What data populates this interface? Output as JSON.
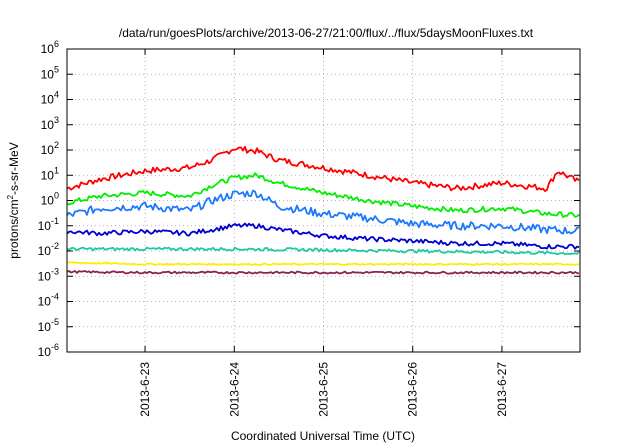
{
  "chart_data": {
    "type": "line",
    "title": "/data/run/goesPlots/archive/2013-06-27/21:00/flux/../flux/5daysMoonFluxes.txt",
    "xlabel": "Coordinated Universal Time (UTC)",
    "ylabel": "protons/cm²-s-sr-MeV",
    "ylabel_parts": {
      "prefix": "protons/cm",
      "sup": "2",
      "suffix": "-s-sr-MeV"
    },
    "y_scale": "log",
    "ylim": [
      1e-06,
      1000000.0
    ],
    "y_ticks": [
      {
        "value": 1e-06,
        "exp": "-6"
      },
      {
        "value": 1e-05,
        "exp": "-5"
      },
      {
        "value": 0.0001,
        "exp": "-4"
      },
      {
        "value": 0.001,
        "exp": "-3"
      },
      {
        "value": 0.01,
        "exp": "-2"
      },
      {
        "value": 0.1,
        "exp": "-1"
      },
      {
        "value": 1,
        "exp": "0"
      },
      {
        "value": 10,
        "exp": "1"
      },
      {
        "value": 100,
        "exp": "2"
      },
      {
        "value": 1000,
        "exp": "3"
      },
      {
        "value": 10000.0,
        "exp": "4"
      },
      {
        "value": 100000.0,
        "exp": "5"
      },
      {
        "value": 1000000.0,
        "exp": "6"
      }
    ],
    "x_ticks": [
      "2013-6-23",
      "2013-6-24",
      "2013-6-25",
      "2013-6-26",
      "2013-6-27"
    ],
    "xlim": [
      "2013-06-22 03:00",
      "2013-06-27 21:00"
    ],
    "grid": true,
    "legend": "none",
    "series": [
      {
        "color": "#ff0000",
        "x": [
          "2013-06-22 03:00",
          "2013-06-22 12:00",
          "2013-06-23 00:00",
          "2013-06-23 12:00",
          "2013-06-23 18:00",
          "2013-06-24 00:00",
          "2013-06-24 06:00",
          "2013-06-24 12:00",
          "2013-06-25 00:00",
          "2013-06-25 12:00",
          "2013-06-26 00:00",
          "2013-06-26 12:00",
          "2013-06-27 00:00",
          "2013-06-27 12:00",
          "2013-06-27 15:00",
          "2013-06-27 21:00"
        ],
        "values": [
          3,
          7,
          15,
          20,
          40,
          120,
          90,
          40,
          20,
          10,
          5,
          3,
          5,
          3,
          15,
          5
        ]
      },
      {
        "color": "#00ee00",
        "x": [
          "2013-06-22 03:00",
          "2013-06-22 12:00",
          "2013-06-23 00:00",
          "2013-06-23 12:00",
          "2013-06-23 18:00",
          "2013-06-24 00:00",
          "2013-06-24 06:00",
          "2013-06-24 12:00",
          "2013-06-25 00:00",
          "2013-06-25 12:00",
          "2013-06-26 00:00",
          "2013-06-26 12:00",
          "2013-06-27 00:00",
          "2013-06-27 12:00",
          "2013-06-27 21:00"
        ],
        "values": [
          0.8,
          1.5,
          2,
          1.5,
          4,
          8,
          10,
          5,
          2,
          1,
          0.6,
          0.4,
          0.5,
          0.3,
          0.25
        ]
      },
      {
        "color": "#1e78ff",
        "x": [
          "2013-06-22 03:00",
          "2013-06-22 12:00",
          "2013-06-23 00:00",
          "2013-06-23 12:00",
          "2013-06-23 18:00",
          "2013-06-24 00:00",
          "2013-06-24 06:00",
          "2013-06-24 12:00",
          "2013-06-25 00:00",
          "2013-06-25 12:00",
          "2013-06-26 00:00",
          "2013-06-26 12:00",
          "2013-06-27 00:00",
          "2013-06-27 12:00",
          "2013-06-27 21:00"
        ],
        "values": [
          0.25,
          0.5,
          0.6,
          0.4,
          1,
          1.8,
          2,
          0.6,
          0.3,
          0.2,
          0.12,
          0.1,
          0.1,
          0.07,
          0.06
        ]
      },
      {
        "color": "#0000d0",
        "x": [
          "2013-06-22 03:00",
          "2013-06-22 12:00",
          "2013-06-23 00:00",
          "2013-06-23 12:00",
          "2013-06-23 18:00",
          "2013-06-24 00:00",
          "2013-06-24 06:00",
          "2013-06-24 12:00",
          "2013-06-25 00:00",
          "2013-06-25 12:00",
          "2013-06-26 00:00",
          "2013-06-26 12:00",
          "2013-06-27 00:00",
          "2013-06-27 12:00",
          "2013-06-27 21:00"
        ],
        "values": [
          0.06,
          0.05,
          0.06,
          0.05,
          0.07,
          0.1,
          0.1,
          0.07,
          0.04,
          0.03,
          0.025,
          0.02,
          0.02,
          0.015,
          0.015
        ]
      },
      {
        "color": "#1ec8a0",
        "x": [
          "2013-06-22 03:00",
          "2013-06-23 00:00",
          "2013-06-24 00:00",
          "2013-06-25 00:00",
          "2013-06-26 00:00",
          "2013-06-27 00:00",
          "2013-06-27 21:00"
        ],
        "values": [
          0.012,
          0.012,
          0.012,
          0.011,
          0.01,
          0.009,
          0.008
        ]
      },
      {
        "color": "#ffee00",
        "x": [
          "2013-06-22 03:00",
          "2013-06-23 00:00",
          "2013-06-24 00:00",
          "2013-06-25 00:00",
          "2013-06-26 00:00",
          "2013-06-27 00:00",
          "2013-06-27 21:00"
        ],
        "values": [
          0.0035,
          0.003,
          0.003,
          0.003,
          0.003,
          0.003,
          0.003
        ]
      },
      {
        "color": "#8b2252",
        "x": [
          "2013-06-22 03:00",
          "2013-06-23 00:00",
          "2013-06-24 00:00",
          "2013-06-25 00:00",
          "2013-06-26 00:00",
          "2013-06-27 00:00",
          "2013-06-27 21:00"
        ],
        "values": [
          0.0015,
          0.0014,
          0.0014,
          0.0014,
          0.0014,
          0.0014,
          0.0014
        ]
      }
    ]
  }
}
